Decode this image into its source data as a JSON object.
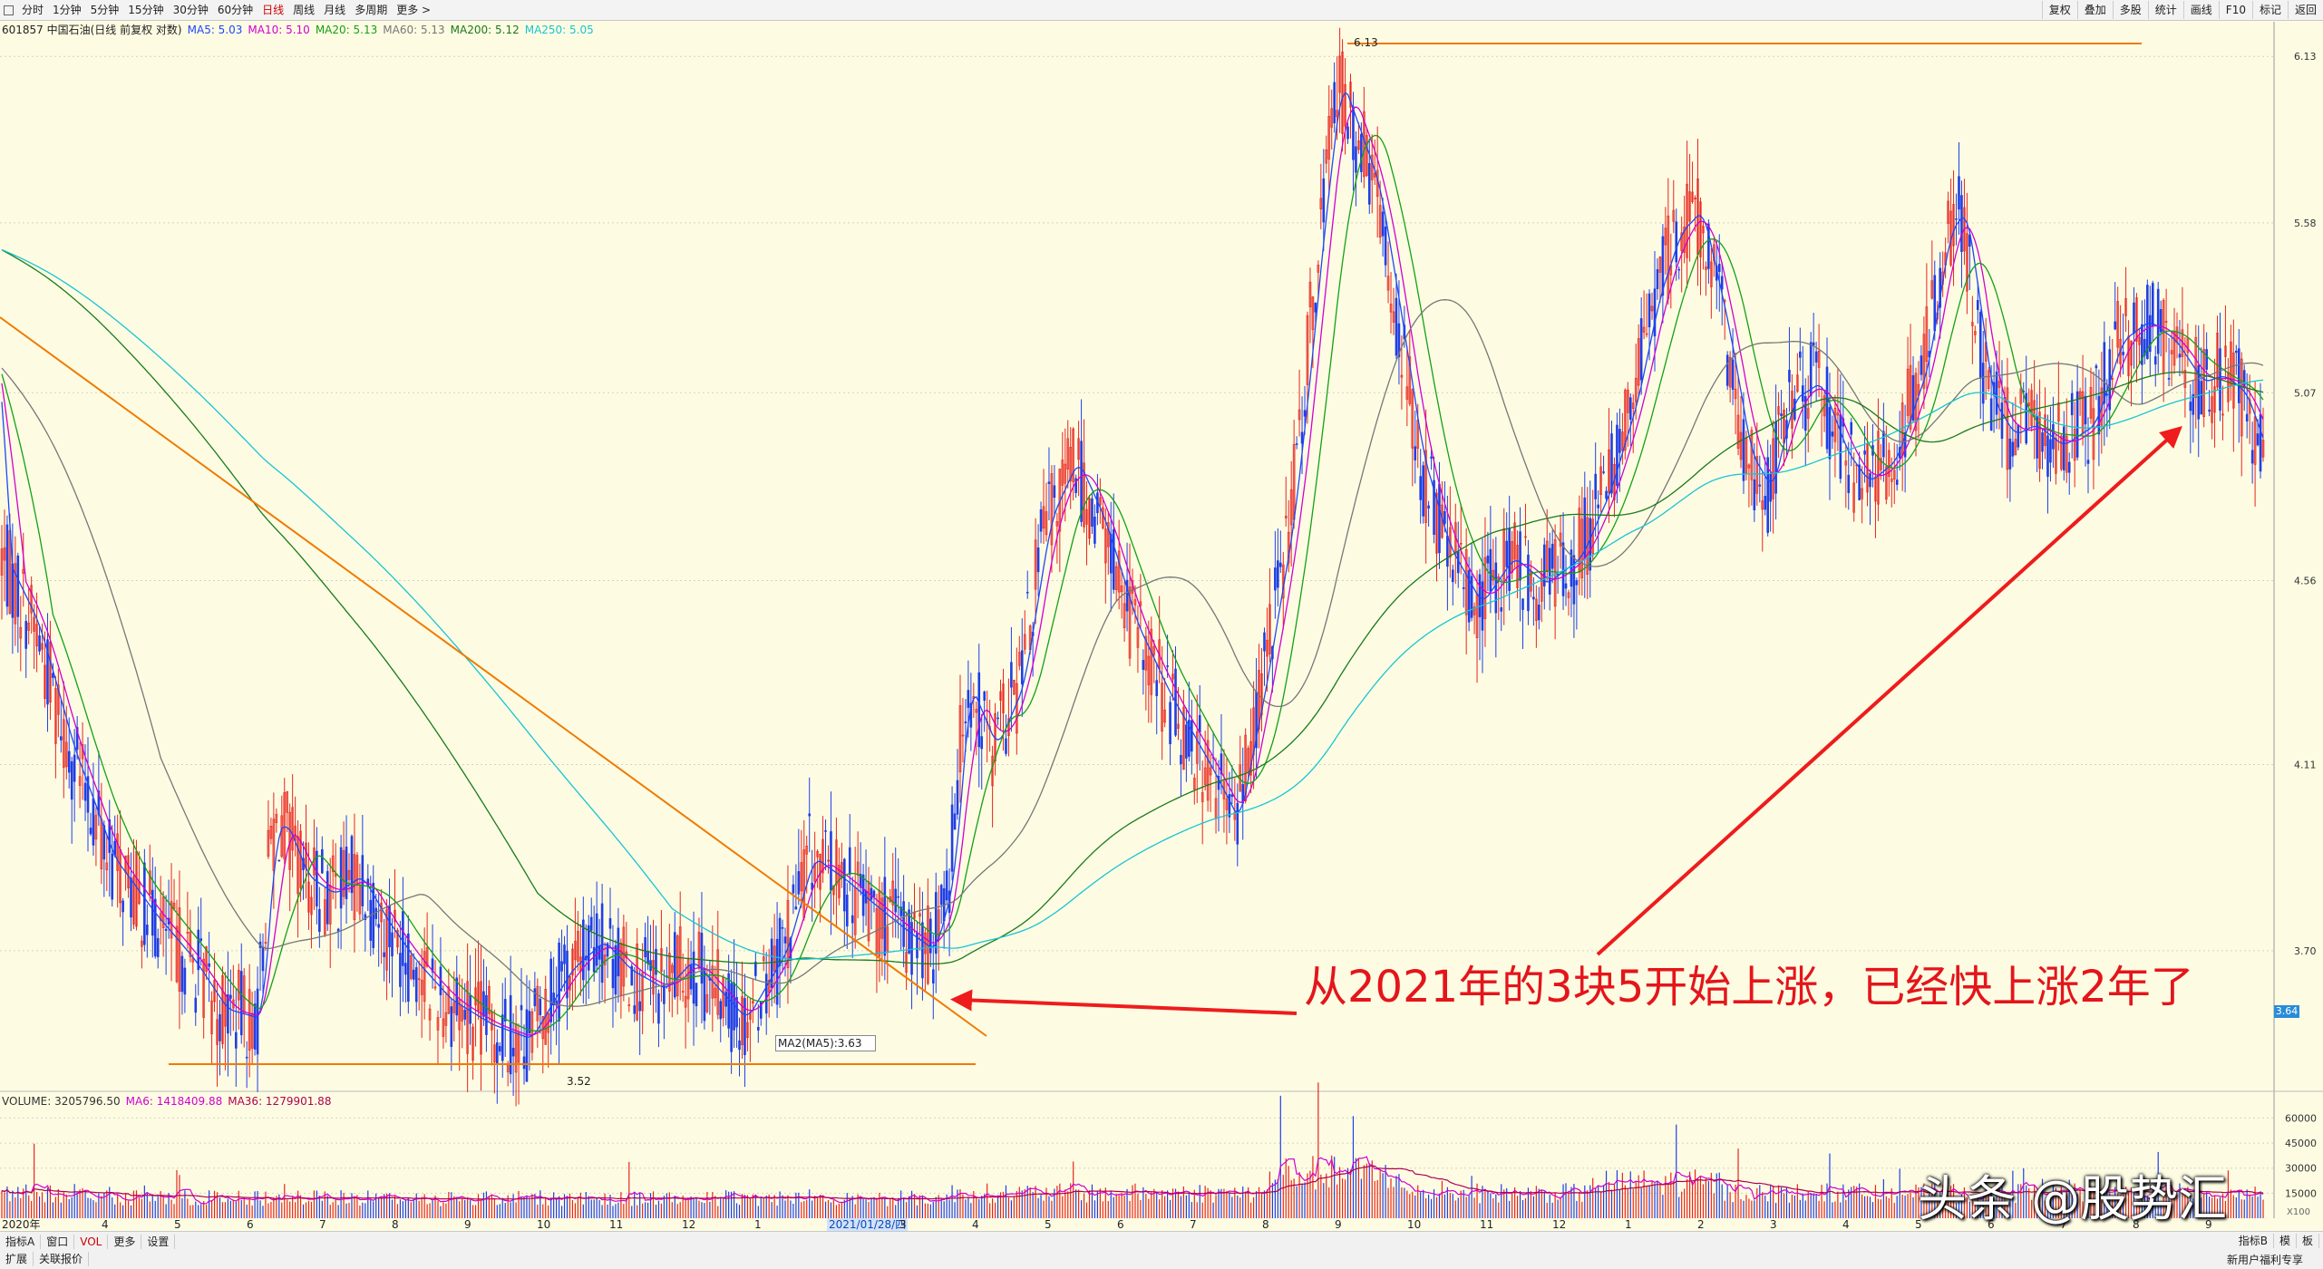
{
  "toolbar": {
    "items": [
      "分时",
      "1分钟",
      "5分钟",
      "15分钟",
      "30分钟",
      "60分钟",
      "日线",
      "周线",
      "月线",
      "多周期",
      "更多 >"
    ],
    "active_index": 6,
    "right_buttons": [
      "复权",
      "叠加",
      "多股",
      "统计",
      "画线",
      "F10",
      "标记",
      "返回"
    ]
  },
  "indicator": {
    "title": "601857 中国石油(日线 前复权 对数)",
    "ma": [
      {
        "label": "MA5: 5.03",
        "color": "#1e46ff"
      },
      {
        "label": "MA10: 5.10",
        "color": "#d000d0"
      },
      {
        "label": "MA20: 5.13",
        "color": "#15a015"
      },
      {
        "label": "MA60: 5.13",
        "color": "#777777"
      },
      {
        "label": "MA200: 5.12",
        "color": "#1a7a1a"
      },
      {
        "label": "MA250: 5.05",
        "color": "#19c4d2"
      }
    ]
  },
  "volume_indicator": {
    "items": [
      {
        "label": "VOLUME: 3205796.50",
        "color": "#333333"
      },
      {
        "label": "MA6: 1418409.88",
        "color": "#d000d0"
      },
      {
        "label": "MA36: 1279901.88",
        "color": "#b00050"
      }
    ]
  },
  "chart_data": {
    "type": "candlestick",
    "price_axis": {
      "ticks": [
        "6.13",
        "5.58",
        "5.07",
        "4.56",
        "4.11",
        "3.70"
      ],
      "scale": "log",
      "current_price": "3.64"
    },
    "volume_axis": {
      "ticks": [
        "60000",
        "45000",
        "30000",
        "15000"
      ],
      "unit": "X100"
    },
    "x_ticks": [
      "2020年",
      "4",
      "5",
      "6",
      "7",
      "8",
      "9",
      "10",
      "11",
      "12",
      "1",
      "2021/01/28/四",
      "3",
      "4",
      "5",
      "6",
      "7",
      "8",
      "9",
      "10",
      "11",
      "12",
      "1",
      "2",
      "3",
      "4",
      "5",
      "6",
      "7",
      "8",
      "9"
    ],
    "highlighted_tick": "2021/01/28/四",
    "close_path": [
      [
        0,
        4.62
      ],
      [
        12,
        4.45
      ],
      [
        25,
        4.15
      ],
      [
        40,
        3.9
      ],
      [
        55,
        3.78
      ],
      [
        70,
        3.68
      ],
      [
        82,
        3.58
      ],
      [
        95,
        3.56
      ],
      [
        100,
        3.95
      ],
      [
        104,
        3.98
      ],
      [
        112,
        3.86
      ],
      [
        122,
        3.82
      ],
      [
        132,
        3.86
      ],
      [
        142,
        3.76
      ],
      [
        152,
        3.68
      ],
      [
        165,
        3.6
      ],
      [
        180,
        3.55
      ],
      [
        195,
        3.52
      ],
      [
        210,
        3.66
      ],
      [
        222,
        3.72
      ],
      [
        232,
        3.66
      ],
      [
        245,
        3.62
      ],
      [
        255,
        3.68
      ],
      [
        268,
        3.6
      ],
      [
        275,
        3.56
      ],
      [
        290,
        3.7
      ],
      [
        300,
        3.9
      ],
      [
        312,
        3.85
      ],
      [
        322,
        3.8
      ],
      [
        335,
        3.74
      ],
      [
        345,
        3.7
      ],
      [
        352,
        3.85
      ],
      [
        358,
        4.3
      ],
      [
        368,
        4.15
      ],
      [
        378,
        4.3
      ],
      [
        388,
        4.72
      ],
      [
        398,
        4.88
      ],
      [
        408,
        4.72
      ],
      [
        420,
        4.45
      ],
      [
        432,
        4.28
      ],
      [
        448,
        4.1
      ],
      [
        458,
        3.98
      ],
      [
        468,
        4.3
      ],
      [
        478,
        4.7
      ],
      [
        484,
        5.1
      ],
      [
        490,
        5.6
      ],
      [
        496,
        6.05
      ],
      [
        502,
        5.9
      ],
      [
        510,
        5.7
      ],
      [
        518,
        5.3
      ],
      [
        526,
        4.9
      ],
      [
        536,
        4.65
      ],
      [
        548,
        4.5
      ],
      [
        560,
        4.62
      ],
      [
        572,
        4.55
      ],
      [
        585,
        4.62
      ],
      [
        596,
        4.8
      ],
      [
        606,
        5.05
      ],
      [
        614,
        5.35
      ],
      [
        622,
        5.55
      ],
      [
        630,
        5.62
      ],
      [
        640,
        5.25
      ],
      [
        648,
        4.9
      ],
      [
        656,
        4.8
      ],
      [
        664,
        5.05
      ],
      [
        674,
        5.1
      ],
      [
        684,
        4.9
      ],
      [
        692,
        4.82
      ],
      [
        702,
        4.88
      ],
      [
        714,
        5.15
      ],
      [
        722,
        5.55
      ],
      [
        728,
        5.62
      ],
      [
        738,
        5.05
      ],
      [
        746,
        4.95
      ],
      [
        754,
        4.98
      ],
      [
        764,
        4.92
      ],
      [
        776,
        4.98
      ],
      [
        786,
        5.22
      ],
      [
        796,
        5.28
      ],
      [
        806,
        5.22
      ],
      [
        816,
        5.1
      ],
      [
        824,
        5.12
      ],
      [
        832,
        5.07
      ],
      [
        840,
        4.9
      ]
    ],
    "moving_averages": [
      {
        "name": "MA5",
        "color": "#1e46ff"
      },
      {
        "name": "MA10",
        "color": "#d000d0"
      },
      {
        "name": "MA20",
        "color": "#15a015"
      },
      {
        "name": "MA60",
        "color": "#777777"
      },
      {
        "name": "MA200",
        "color": "#1a7a1a"
      },
      {
        "name": "MA250",
        "color": "#19c4d2"
      }
    ],
    "labels": {
      "high": "6.13",
      "low": "3.52",
      "ma2_tag": "MA2(MA5):3.63"
    },
    "annotation": "从2021年的3块5开始上涨，已经快上涨2年了"
  },
  "bottombar": {
    "row1": [
      "指标A",
      "窗口",
      "VOL",
      "更多",
      "设置"
    ],
    "row2": [
      "扩展",
      "关联报价"
    ],
    "row1_active": 2,
    "right_buttons": [
      "指标B",
      "模",
      "板"
    ],
    "right_caption": "新用户福利专享"
  },
  "watermark": "头条 @股势汇",
  "colors": {
    "up": "#e8251d",
    "down": "#1f3ee6",
    "trend": "#f07a00",
    "annot": "#e4151b"
  }
}
